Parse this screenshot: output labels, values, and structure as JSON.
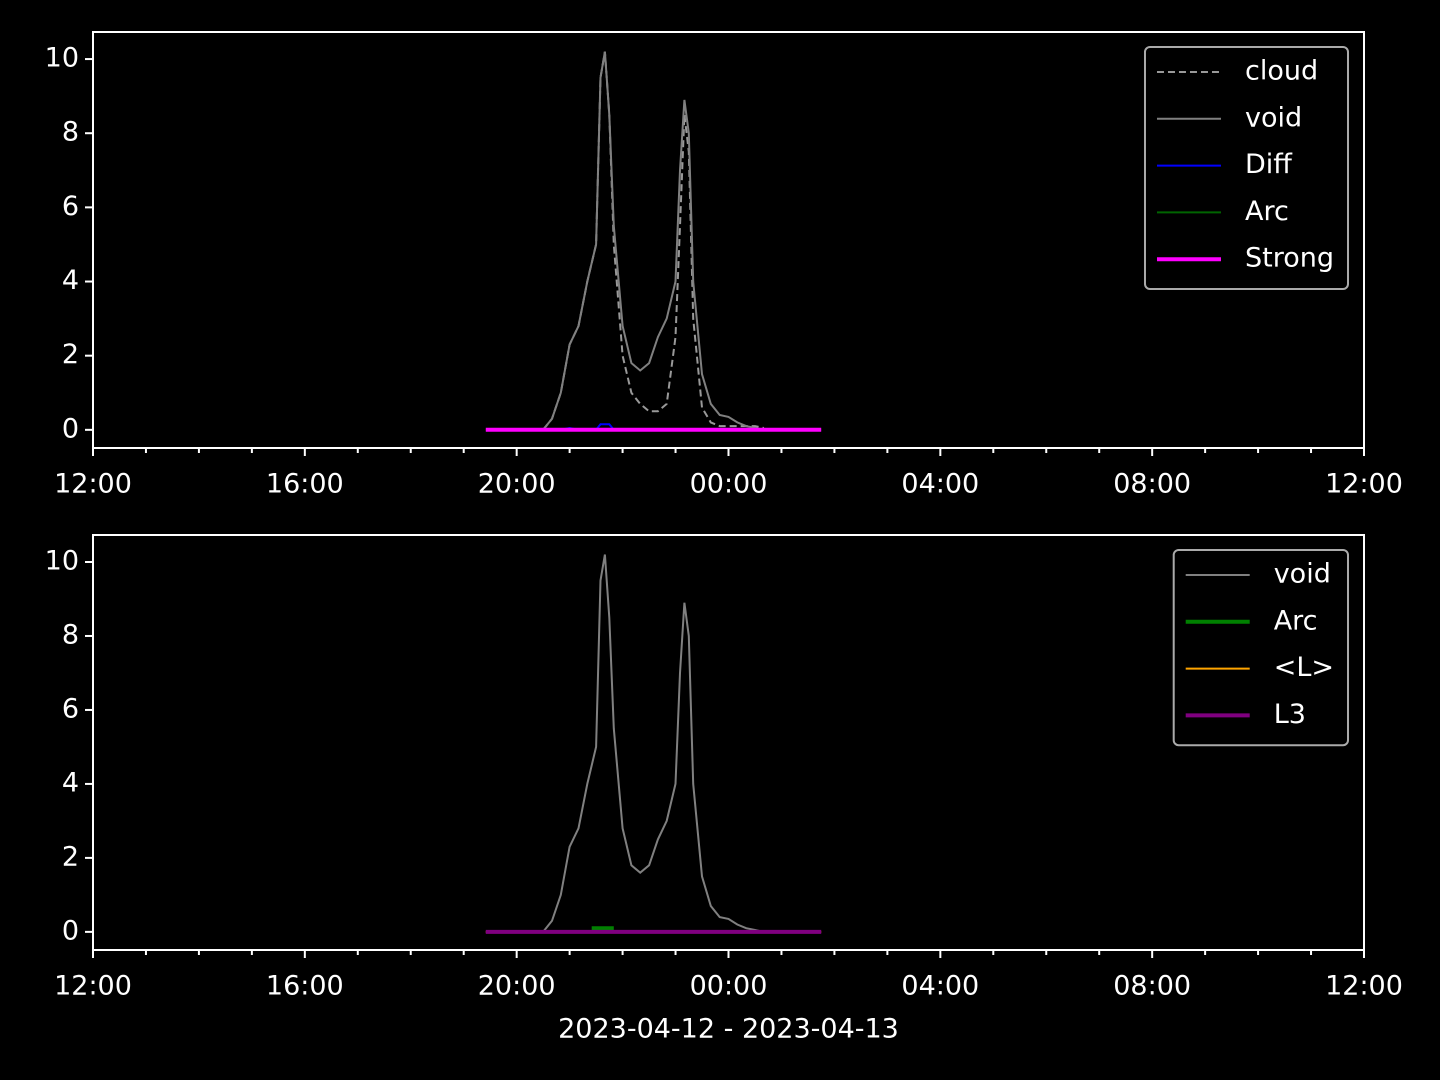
{
  "chart_data": [
    {
      "type": "line",
      "legend": "upper right",
      "xlim": [
        "2023-04-12 12:00",
        "2023-04-13 12:00"
      ],
      "xticks": [
        {
          "value": "2023-04-12 12:00",
          "label": "12:00"
        },
        {
          "value": "2023-04-12 16:00",
          "label": "16:00"
        },
        {
          "value": "2023-04-12 20:00",
          "label": "20:00"
        },
        {
          "value": "2023-04-13 00:00",
          "label": "00:00"
        },
        {
          "value": "2023-04-13 04:00",
          "label": "04:00"
        },
        {
          "value": "2023-04-13 08:00",
          "label": "08:00"
        },
        {
          "value": "2023-04-13 12:00",
          "label": "12:00"
        }
      ],
      "xticks_minor": [
        "2023-04-12 13:00",
        "2023-04-12 14:00",
        "2023-04-12 15:00",
        "2023-04-12 17:00",
        "2023-04-12 18:00",
        "2023-04-12 19:00",
        "2023-04-12 21:00",
        "2023-04-12 22:00",
        "2023-04-12 23:00",
        "2023-04-13 01:00",
        "2023-04-13 02:00",
        "2023-04-13 03:00",
        "2023-04-13 05:00",
        "2023-04-13 06:00",
        "2023-04-13 07:00",
        "2023-04-13 09:00",
        "2023-04-13 10:00",
        "2023-04-13 11:00"
      ],
      "ylim": [
        -0.49,
        10.73
      ],
      "yticks": [
        0,
        2,
        4,
        6,
        8,
        10
      ],
      "series": [
        {
          "name": "cloud",
          "color": "#999999",
          "linestyle": "dashed",
          "linewidth": 2,
          "x": [
            "2023-04-12 20:30",
            "2023-04-12 20:40",
            "2023-04-12 20:50",
            "2023-04-12 21:00",
            "2023-04-12 21:10",
            "2023-04-12 21:20",
            "2023-04-12 21:30",
            "2023-04-12 21:35",
            "2023-04-12 21:40",
            "2023-04-12 21:45",
            "2023-04-12 21:50",
            "2023-04-12 22:00",
            "2023-04-12 22:10",
            "2023-04-12 22:20",
            "2023-04-12 22:30",
            "2023-04-12 22:40",
            "2023-04-12 22:50",
            "2023-04-12 23:00",
            "2023-04-12 23:05",
            "2023-04-12 23:10",
            "2023-04-12 23:15",
            "2023-04-12 23:20",
            "2023-04-12 23:30",
            "2023-04-12 23:40",
            "2023-04-12 23:50",
            "2023-04-13 00:00",
            "2023-04-13 00:10",
            "2023-04-13 00:20",
            "2023-04-13 00:30",
            "2023-04-13 00:40"
          ],
          "values": [
            0,
            0.3,
            1.0,
            2.3,
            2.8,
            4.0,
            5.0,
            9.5,
            10.2,
            8.5,
            5.0,
            2.0,
            1.0,
            0.7,
            0.5,
            0.5,
            0.7,
            2.5,
            5.5,
            8.5,
            7.5,
            3.0,
            0.6,
            0.2,
            0.1,
            0.1,
            0.1,
            0.1,
            0.1,
            0.05
          ]
        },
        {
          "name": "void",
          "color": "#808080",
          "linestyle": "solid",
          "linewidth": 2,
          "x": [
            "2023-04-12 20:30",
            "2023-04-12 20:40",
            "2023-04-12 20:50",
            "2023-04-12 21:00",
            "2023-04-12 21:10",
            "2023-04-12 21:20",
            "2023-04-12 21:30",
            "2023-04-12 21:35",
            "2023-04-12 21:40",
            "2023-04-12 21:45",
            "2023-04-12 21:50",
            "2023-04-12 22:00",
            "2023-04-12 22:10",
            "2023-04-12 22:20",
            "2023-04-12 22:30",
            "2023-04-12 22:40",
            "2023-04-12 22:50",
            "2023-04-12 23:00",
            "2023-04-12 23:05",
            "2023-04-12 23:10",
            "2023-04-12 23:15",
            "2023-04-12 23:20",
            "2023-04-12 23:30",
            "2023-04-12 23:40",
            "2023-04-12 23:50",
            "2023-04-13 00:00",
            "2023-04-13 00:10",
            "2023-04-13 00:20",
            "2023-04-13 00:30",
            "2023-04-13 00:40"
          ],
          "values": [
            0,
            0.3,
            1.0,
            2.3,
            2.8,
            4.0,
            5.0,
            9.5,
            10.2,
            8.5,
            5.5,
            2.8,
            1.8,
            1.6,
            1.8,
            2.5,
            3.0,
            4.0,
            7.0,
            8.9,
            8.0,
            4.0,
            1.5,
            0.7,
            0.4,
            0.35,
            0.2,
            0.1,
            0.05,
            0
          ]
        },
        {
          "name": "Diff",
          "color": "#0000ff",
          "linestyle": "solid",
          "linewidth": 2,
          "x": [
            "2023-04-12 20:50",
            "2023-04-12 21:00",
            "2023-04-12 21:10",
            "2023-04-12 21:30",
            "2023-04-12 21:35",
            "2023-04-12 21:45",
            "2023-04-12 21:50"
          ],
          "values": [
            0,
            0.05,
            0,
            0,
            0.15,
            0.15,
            0
          ]
        },
        {
          "name": "Arc",
          "color": "#006400",
          "linestyle": "solid",
          "linewidth": 2,
          "x": [
            "2023-04-12 19:25",
            "2023-04-13 01:45"
          ],
          "values": [
            0,
            0
          ]
        },
        {
          "name": "Strong",
          "color": "#ff00ff",
          "linestyle": "solid",
          "linewidth": 4,
          "x": [
            "2023-04-12 19:25",
            "2023-04-13 01:45"
          ],
          "values": [
            0,
            0
          ]
        }
      ]
    },
    {
      "type": "line",
      "legend": "upper right",
      "xlabel": "2023-04-12 - 2023-04-13",
      "xlim": [
        "2023-04-12 12:00",
        "2023-04-13 12:00"
      ],
      "xticks": [
        {
          "value": "2023-04-12 12:00",
          "label": "12:00"
        },
        {
          "value": "2023-04-12 16:00",
          "label": "16:00"
        },
        {
          "value": "2023-04-12 20:00",
          "label": "20:00"
        },
        {
          "value": "2023-04-13 00:00",
          "label": "00:00"
        },
        {
          "value": "2023-04-13 04:00",
          "label": "04:00"
        },
        {
          "value": "2023-04-13 08:00",
          "label": "08:00"
        },
        {
          "value": "2023-04-13 12:00",
          "label": "12:00"
        }
      ],
      "xticks_minor": [
        "2023-04-12 13:00",
        "2023-04-12 14:00",
        "2023-04-12 15:00",
        "2023-04-12 17:00",
        "2023-04-12 18:00",
        "2023-04-12 19:00",
        "2023-04-12 21:00",
        "2023-04-12 22:00",
        "2023-04-12 23:00",
        "2023-04-13 01:00",
        "2023-04-13 02:00",
        "2023-04-13 03:00",
        "2023-04-13 05:00",
        "2023-04-13 06:00",
        "2023-04-13 07:00",
        "2023-04-13 09:00",
        "2023-04-13 10:00",
        "2023-04-13 11:00"
      ],
      "ylim": [
        -0.49,
        10.73
      ],
      "yticks": [
        0,
        2,
        4,
        6,
        8,
        10
      ],
      "series": [
        {
          "name": "void",
          "color": "#808080",
          "linestyle": "solid",
          "linewidth": 2,
          "x": [
            "2023-04-12 20:30",
            "2023-04-12 20:40",
            "2023-04-12 20:50",
            "2023-04-12 21:00",
            "2023-04-12 21:10",
            "2023-04-12 21:20",
            "2023-04-12 21:30",
            "2023-04-12 21:35",
            "2023-04-12 21:40",
            "2023-04-12 21:45",
            "2023-04-12 21:50",
            "2023-04-12 22:00",
            "2023-04-12 22:10",
            "2023-04-12 22:20",
            "2023-04-12 22:30",
            "2023-04-12 22:40",
            "2023-04-12 22:50",
            "2023-04-12 23:00",
            "2023-04-12 23:05",
            "2023-04-12 23:10",
            "2023-04-12 23:15",
            "2023-04-12 23:20",
            "2023-04-12 23:30",
            "2023-04-12 23:40",
            "2023-04-12 23:50",
            "2023-04-13 00:00",
            "2023-04-13 00:10",
            "2023-04-13 00:20",
            "2023-04-13 00:30",
            "2023-04-13 00:40"
          ],
          "values": [
            0,
            0.3,
            1.0,
            2.3,
            2.8,
            4.0,
            5.0,
            9.5,
            10.2,
            8.5,
            5.5,
            2.8,
            1.8,
            1.6,
            1.8,
            2.5,
            3.0,
            4.0,
            7.0,
            8.9,
            8.0,
            4.0,
            1.5,
            0.7,
            0.4,
            0.35,
            0.2,
            0.1,
            0.05,
            0
          ]
        },
        {
          "name": "Arc",
          "color": "#008000",
          "linestyle": "solid",
          "linewidth": 4,
          "x": [
            "2023-04-12 21:25",
            "2023-04-12 21:50"
          ],
          "values": [
            0.1,
            0.1
          ]
        },
        {
          "name": "<L>",
          "color": "#ffa500",
          "linestyle": "solid",
          "linewidth": 2,
          "x": [
            "2023-04-12 19:25",
            "2023-04-13 01:45"
          ],
          "values": [
            0,
            0
          ]
        },
        {
          "name": "L3",
          "color": "#800080",
          "linestyle": "solid",
          "linewidth": 4,
          "x": [
            "2023-04-12 19:25",
            "2023-04-13 01:45"
          ],
          "values": [
            0,
            0
          ]
        }
      ]
    }
  ]
}
